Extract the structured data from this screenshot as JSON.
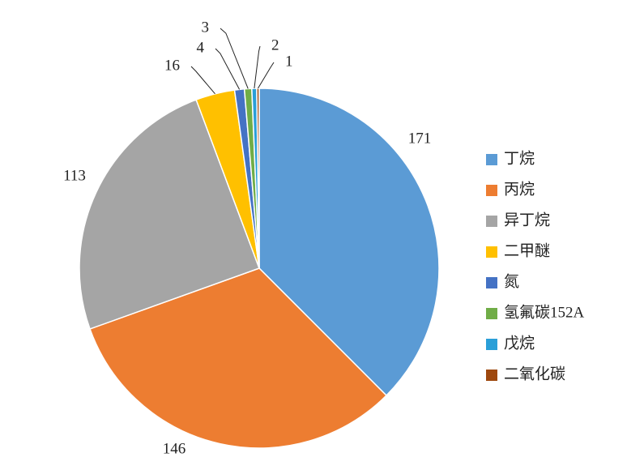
{
  "chart_data": {
    "type": "pie",
    "categories": [
      "丁烷",
      "丙烷",
      "异丁烷",
      "二甲醚",
      "氮",
      "氢氟碳152A",
      "戊烷",
      "二氧化碳"
    ],
    "values": [
      171,
      146,
      113,
      16,
      4,
      3,
      2,
      1
    ],
    "colors": [
      "#5b9bd5",
      "#ed7d31",
      "#a5a5a5",
      "#ffc000",
      "#4472c4",
      "#70ad47",
      "#2a9fd8",
      "#9e480e"
    ],
    "legend": "right"
  }
}
